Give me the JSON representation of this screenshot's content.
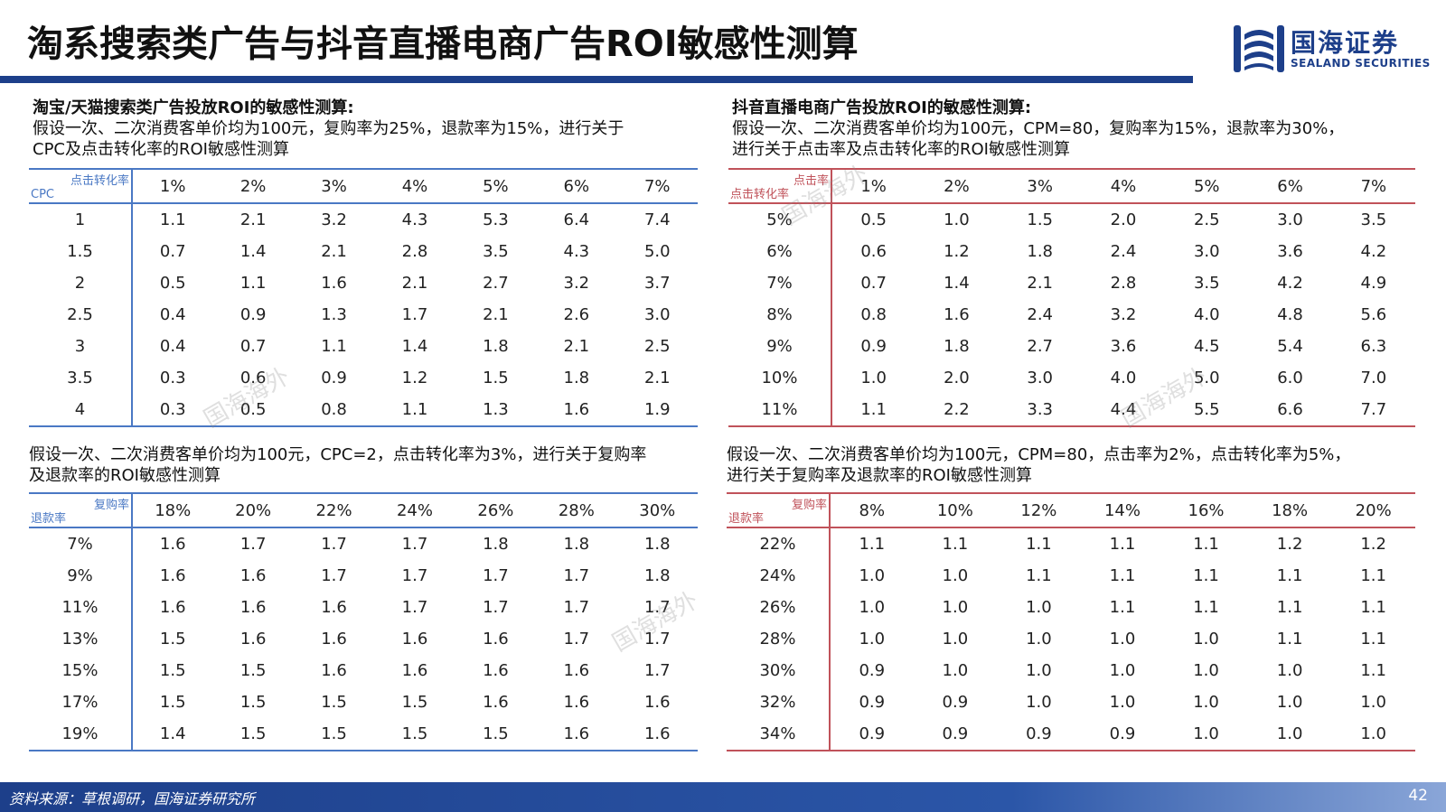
{
  "title": "淘系搜索类广告与抖音直播电商广告ROI敏感性测算",
  "logo": {
    "name": "国海证券",
    "sub": "SEALAND SECURITIES"
  },
  "watermark": "国海海外",
  "colors": {
    "brand_blue": "#1d3f8a",
    "table_blue": "#4a78c4",
    "table_red": "#c0525a"
  },
  "panel_tl": {
    "heading": "淘宝/天猫搜索类广告投放ROI的敏感性测算:",
    "lines": [
      "假设一次、二次消费客单价均为100元，复购率为25%，退款率为15%，进行关于",
      "CPC及点击转化率的ROI敏感性测算"
    ],
    "corner_top": "点击转化率",
    "corner_bottom": "CPC",
    "columns": [
      "1%",
      "2%",
      "3%",
      "4%",
      "5%",
      "6%",
      "7%"
    ],
    "rows": [
      {
        "label": "1",
        "values": [
          "1.1",
          "2.1",
          "3.2",
          "4.3",
          "5.3",
          "6.4",
          "7.4"
        ]
      },
      {
        "label": "1.5",
        "values": [
          "0.7",
          "1.4",
          "2.1",
          "2.8",
          "3.5",
          "4.3",
          "5.0"
        ]
      },
      {
        "label": "2",
        "values": [
          "0.5",
          "1.1",
          "1.6",
          "2.1",
          "2.7",
          "3.2",
          "3.7"
        ]
      },
      {
        "label": "2.5",
        "values": [
          "0.4",
          "0.9",
          "1.3",
          "1.7",
          "2.1",
          "2.6",
          "3.0"
        ]
      },
      {
        "label": "3",
        "values": [
          "0.4",
          "0.7",
          "1.1",
          "1.4",
          "1.8",
          "2.1",
          "2.5"
        ]
      },
      {
        "label": "3.5",
        "values": [
          "0.3",
          "0.6",
          "0.9",
          "1.2",
          "1.5",
          "1.8",
          "2.1"
        ]
      },
      {
        "label": "4",
        "values": [
          "0.3",
          "0.5",
          "0.8",
          "1.1",
          "1.3",
          "1.6",
          "1.9"
        ]
      }
    ]
  },
  "panel_tr": {
    "heading": "抖音直播电商广告投放ROI的敏感性测算:",
    "lines": [
      "假设一次、二次消费客单价均为100元，CPM=80，复购率为15%，退款率为30%，",
      "进行关于点击率及点击转化率的ROI敏感性测算"
    ],
    "corner_top": "点击率",
    "corner_bottom": "点击转化率",
    "columns": [
      "1%",
      "2%",
      "3%",
      "4%",
      "5%",
      "6%",
      "7%"
    ],
    "rows": [
      {
        "label": "5%",
        "values": [
          "0.5",
          "1.0",
          "1.5",
          "2.0",
          "2.5",
          "3.0",
          "3.5"
        ]
      },
      {
        "label": "6%",
        "values": [
          "0.6",
          "1.2",
          "1.8",
          "2.4",
          "3.0",
          "3.6",
          "4.2"
        ]
      },
      {
        "label": "7%",
        "values": [
          "0.7",
          "1.4",
          "2.1",
          "2.8",
          "3.5",
          "4.2",
          "4.9"
        ]
      },
      {
        "label": "8%",
        "values": [
          "0.8",
          "1.6",
          "2.4",
          "3.2",
          "4.0",
          "4.8",
          "5.6"
        ]
      },
      {
        "label": "9%",
        "values": [
          "0.9",
          "1.8",
          "2.7",
          "3.6",
          "4.5",
          "5.4",
          "6.3"
        ]
      },
      {
        "label": "10%",
        "values": [
          "1.0",
          "2.0",
          "3.0",
          "4.0",
          "5.0",
          "6.0",
          "7.0"
        ]
      },
      {
        "label": "11%",
        "values": [
          "1.1",
          "2.2",
          "3.3",
          "4.4",
          "5.5",
          "6.6",
          "7.7"
        ]
      }
    ]
  },
  "panel_bl": {
    "lines": [
      "假设一次、二次消费客单价均为100元，CPC=2，点击转化率为3%，进行关于复购率",
      "及退款率的ROI敏感性测算"
    ],
    "corner_top": "复购率",
    "corner_bottom": "退款率",
    "columns": [
      "18%",
      "20%",
      "22%",
      "24%",
      "26%",
      "28%",
      "30%"
    ],
    "rows": [
      {
        "label": "7%",
        "values": [
          "1.6",
          "1.7",
          "1.7",
          "1.7",
          "1.8",
          "1.8",
          "1.8"
        ]
      },
      {
        "label": "9%",
        "values": [
          "1.6",
          "1.6",
          "1.7",
          "1.7",
          "1.7",
          "1.7",
          "1.8"
        ]
      },
      {
        "label": "11%",
        "values": [
          "1.6",
          "1.6",
          "1.6",
          "1.7",
          "1.7",
          "1.7",
          "1.7"
        ]
      },
      {
        "label": "13%",
        "values": [
          "1.5",
          "1.6",
          "1.6",
          "1.6",
          "1.6",
          "1.7",
          "1.7"
        ]
      },
      {
        "label": "15%",
        "values": [
          "1.5",
          "1.5",
          "1.6",
          "1.6",
          "1.6",
          "1.6",
          "1.7"
        ]
      },
      {
        "label": "17%",
        "values": [
          "1.5",
          "1.5",
          "1.5",
          "1.5",
          "1.6",
          "1.6",
          "1.6"
        ]
      },
      {
        "label": "19%",
        "values": [
          "1.4",
          "1.5",
          "1.5",
          "1.5",
          "1.5",
          "1.6",
          "1.6"
        ]
      }
    ]
  },
  "panel_br": {
    "lines": [
      "假设一次、二次消费客单价均为100元，CPM=80，点击率为2%，点击转化率为5%，",
      "进行关于复购率及退款率的ROI敏感性测算"
    ],
    "corner_top": "复购率",
    "corner_bottom": "退款率",
    "columns": [
      "8%",
      "10%",
      "12%",
      "14%",
      "16%",
      "18%",
      "20%"
    ],
    "rows": [
      {
        "label": "22%",
        "values": [
          "1.1",
          "1.1",
          "1.1",
          "1.1",
          "1.1",
          "1.2",
          "1.2"
        ]
      },
      {
        "label": "24%",
        "values": [
          "1.0",
          "1.0",
          "1.1",
          "1.1",
          "1.1",
          "1.1",
          "1.1"
        ]
      },
      {
        "label": "26%",
        "values": [
          "1.0",
          "1.0",
          "1.0",
          "1.1",
          "1.1",
          "1.1",
          "1.1"
        ]
      },
      {
        "label": "28%",
        "values": [
          "1.0",
          "1.0",
          "1.0",
          "1.0",
          "1.0",
          "1.1",
          "1.1"
        ]
      },
      {
        "label": "30%",
        "values": [
          "0.9",
          "1.0",
          "1.0",
          "1.0",
          "1.0",
          "1.0",
          "1.1"
        ]
      },
      {
        "label": "32%",
        "values": [
          "0.9",
          "0.9",
          "1.0",
          "1.0",
          "1.0",
          "1.0",
          "1.0"
        ]
      },
      {
        "label": "34%",
        "values": [
          "0.9",
          "0.9",
          "0.9",
          "0.9",
          "1.0",
          "1.0",
          "1.0"
        ]
      }
    ]
  },
  "footer": {
    "source": "资料来源：草根调研，国海证券研究所",
    "page": "42"
  }
}
